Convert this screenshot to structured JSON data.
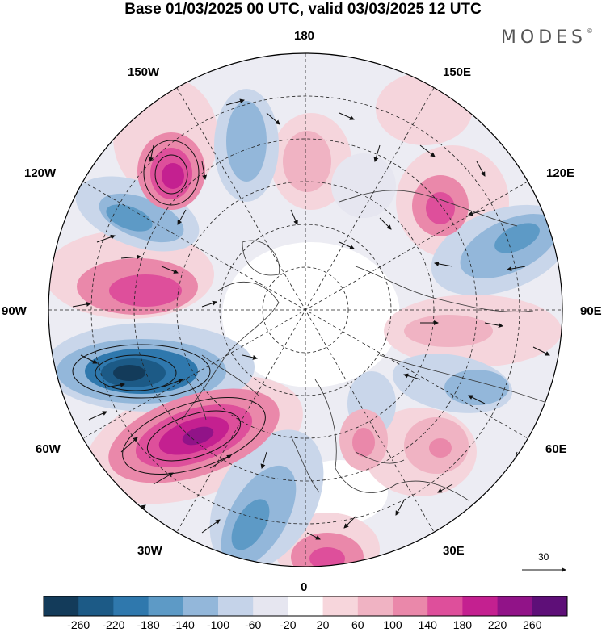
{
  "title": "Base 01/03/2025 00 UTC, valid 03/03/2025 12 UTC",
  "brand": "MODES",
  "brand_mark": "©",
  "longitude_labels": {
    "top": "180",
    "top_left": "150W",
    "top_right": "150E",
    "upper_left": "120W",
    "upper_right": "120E",
    "left": "90W",
    "right": "90E",
    "lower_left": "60W",
    "lower_right": "60E",
    "bottom_left": "30W",
    "bottom_right": "30E",
    "bottom": "0"
  },
  "colorbar": {
    "ticks": [
      "-260",
      "-220",
      "-180",
      "-140",
      "-100",
      "-60",
      "-20",
      "20",
      "60",
      "100",
      "140",
      "180",
      "220",
      "260"
    ],
    "colors": [
      "#133b5a",
      "#1c5a86",
      "#2f78ad",
      "#5d9ac6",
      "#93b7da",
      "#c5d3e9",
      "#e6e6f0",
      "#ffffff",
      "#f7d6dc",
      "#f0b3c3",
      "#ea88aa",
      "#de4f9b",
      "#c42090",
      "#911388",
      "#5e0f78"
    ]
  },
  "vector_scale": "30",
  "colors": {
    "negative_strong": "#1c5a86",
    "positive_strong": "#911388",
    "land_outline": "#333333"
  }
}
